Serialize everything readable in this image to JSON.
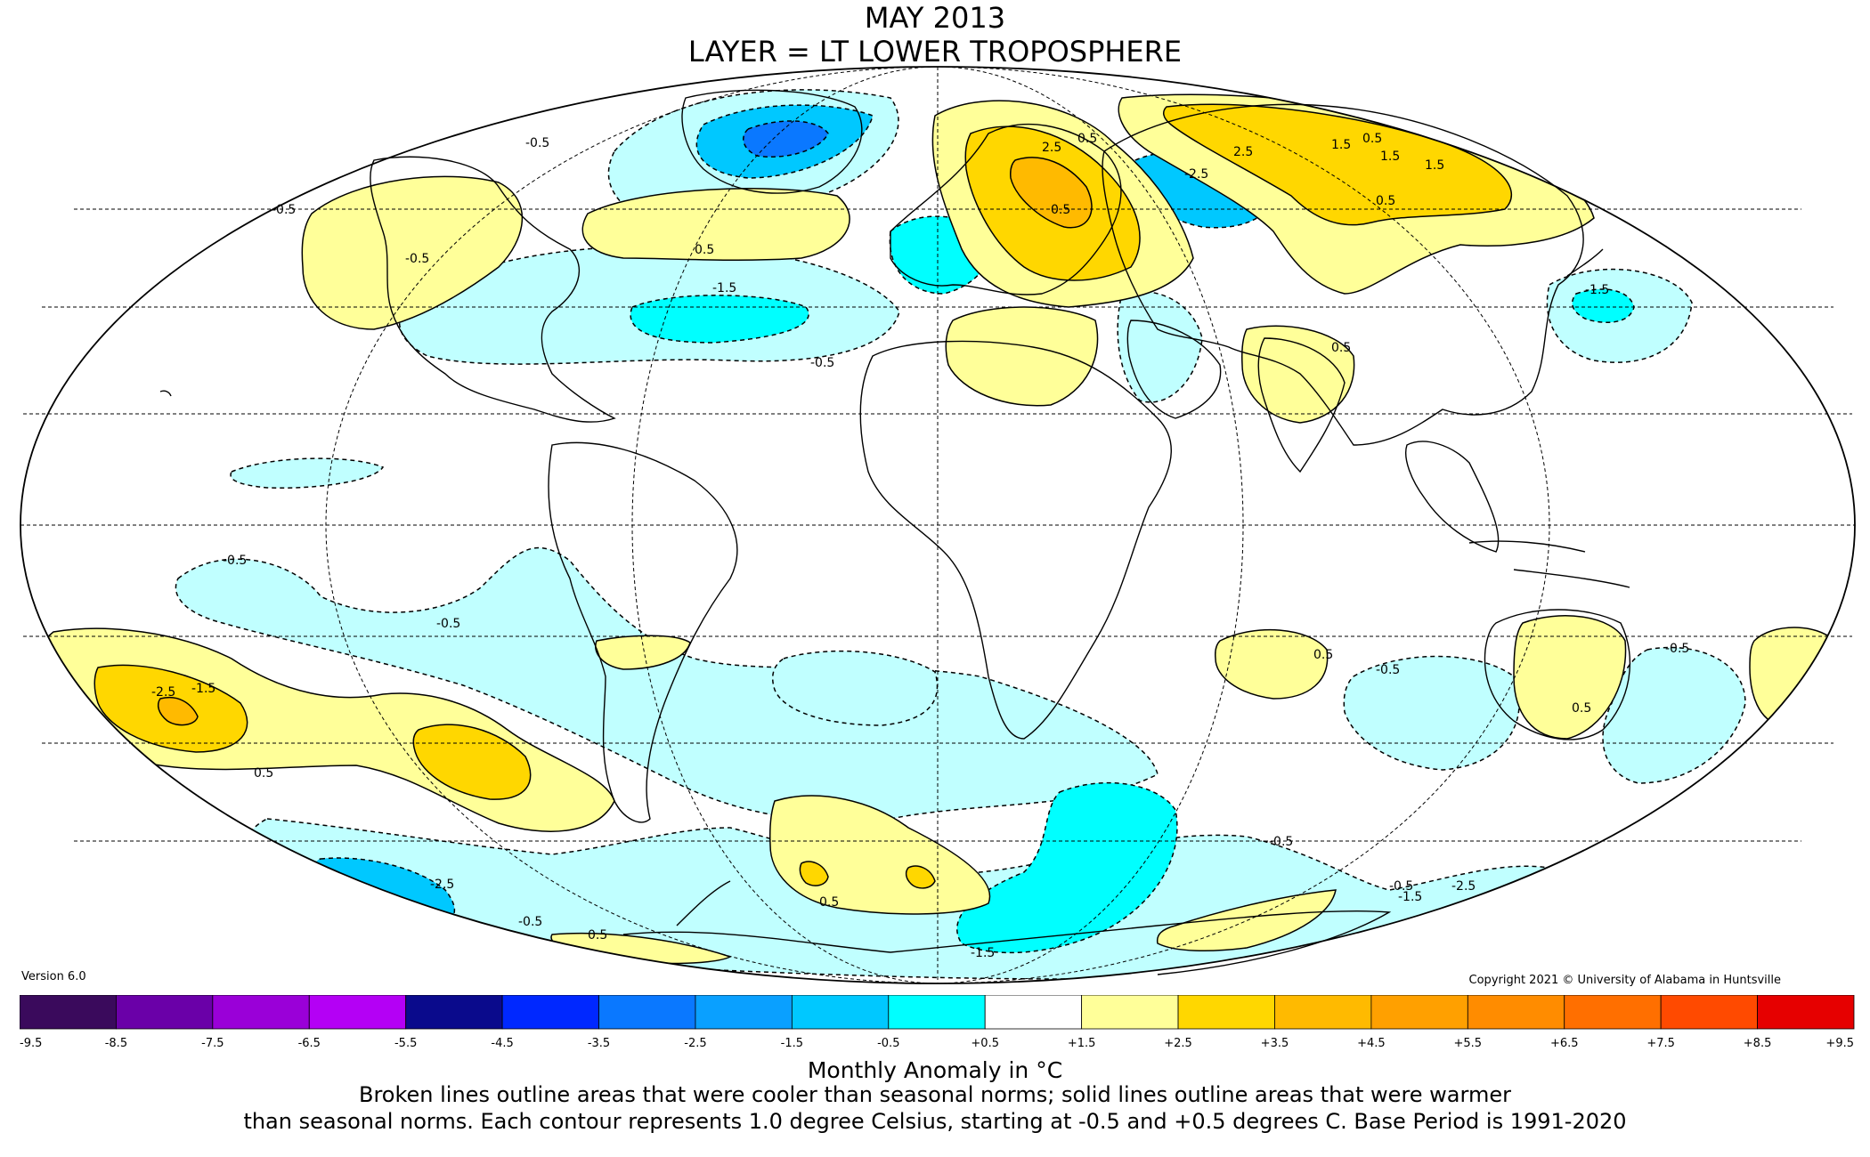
{
  "title_line1": "MAY 2013",
  "title_line2": "LAYER = LT LOWER TROPOSPHERE",
  "version": "Version 6.0",
  "copyright": "Copyright 2021 © University of Alabama in Huntsville",
  "colorbar": {
    "ticks": [
      "-9.5",
      "-8.5",
      "-7.5",
      "-6.5",
      "-5.5",
      "-4.5",
      "-3.5",
      "-2.5",
      "-1.5",
      "-0.5",
      "+0.5",
      "+1.5",
      "+2.5",
      "+3.5",
      "+4.5",
      "+5.5",
      "+6.5",
      "+7.5",
      "+8.5",
      "+9.5"
    ],
    "colors": [
      "#3a0a5c",
      "#6a00a8",
      "#9a00d8",
      "#b400f5",
      "#0a0a8c",
      "#0028ff",
      "#0a78ff",
      "#0aa0ff",
      "#00c8ff",
      "#00ffff",
      "#c0ffff",
      "#ffffff",
      "#ffff99",
      "#ffd700",
      "#ffba00",
      "#ffa000",
      "#ff8c00",
      "#ff6f00",
      "#ff4a00",
      "#e60000",
      "#c00000"
    ]
  },
  "colorbar_slots": 19,
  "unit_label": "Monthly Anomaly in °C",
  "caption_line1": "Broken lines outline areas that were cooler than seasonal norms; solid lines outline areas that were warmer",
  "caption_line2": "than seasonal norms. Each contour represents 1.0 degree Celsius, starting at -0.5 and +0.5 degrees C. Base Period is 1991-2020",
  "contour_labels": [
    "-0.5",
    "-0.5",
    "-0.5",
    "-1.5",
    "-0.5",
    "0.5",
    "0.5",
    "2.5",
    "1.5",
    "0.5",
    "-2.5",
    "-1.5",
    "2.5",
    "1.5",
    "0.5",
    "1.5",
    "0.5",
    "0.5",
    "-0.5",
    "-0.5",
    "0.5",
    "-0.5",
    "-0.5",
    "-1.5",
    "-2.5",
    "-0.5",
    "0.5",
    "-0.5",
    "-1.5",
    "-2.5",
    "-0.5",
    "0.5",
    "0.5",
    "-2.5",
    "-1.5",
    "0.5"
  ],
  "map_colors": {
    "warm1": "#ffff99",
    "warm2": "#ffd700",
    "warm3": "#ffba00",
    "cool1": "#c0ffff",
    "cool2": "#00ffff",
    "cool3": "#00c8ff",
    "cool4": "#0a78ff"
  }
}
